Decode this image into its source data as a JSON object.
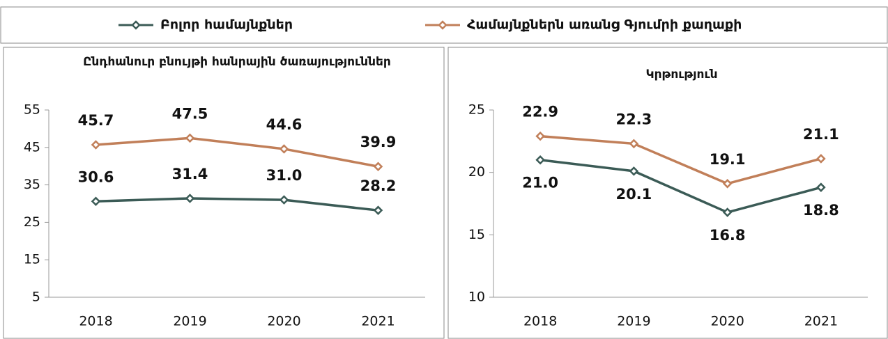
{
  "chart_data": [
    {
      "type": "line",
      "title": "Ընդհանուր բնույթի հանրային ծառայություններ",
      "categories": [
        "2018",
        "2019",
        "2020",
        "2021"
      ],
      "series": [
        {
          "name": "Բոլոր համայնքներ",
          "color": "#3b5b56",
          "values": [
            30.6,
            31.4,
            31.0,
            28.2
          ],
          "value_labels": [
            "30.6",
            "31.4",
            "31.0",
            "28.2"
          ]
        },
        {
          "name": "Համայնքներն առանց Գյումրի քաղաքի",
          "color": "#c17f59",
          "values": [
            45.7,
            47.5,
            44.6,
            39.9
          ],
          "value_labels": [
            "45.7",
            "47.5",
            "44.6",
            "39.9"
          ]
        }
      ],
      "ylim": [
        5,
        55
      ],
      "yticks": [
        5,
        15,
        25,
        35,
        45,
        55
      ],
      "grid": false
    },
    {
      "type": "line",
      "title": "Կրթություն",
      "categories": [
        "2018",
        "2019",
        "2020",
        "2021"
      ],
      "series": [
        {
          "color": "#3b5b56",
          "values": [
            21.0,
            20.1,
            16.8,
            18.8
          ],
          "value_labels": [
            "21.0",
            "20.1",
            "16.8",
            "18.8"
          ]
        },
        {
          "color": "#c17f59",
          "values": [
            22.9,
            22.3,
            19.1,
            21.1
          ],
          "value_labels": [
            "22.9",
            "22.3",
            "19.1",
            "21.1"
          ]
        }
      ],
      "ylim": [
        10,
        25
      ],
      "yticks": [
        10,
        15,
        20,
        25
      ],
      "grid": false
    }
  ]
}
